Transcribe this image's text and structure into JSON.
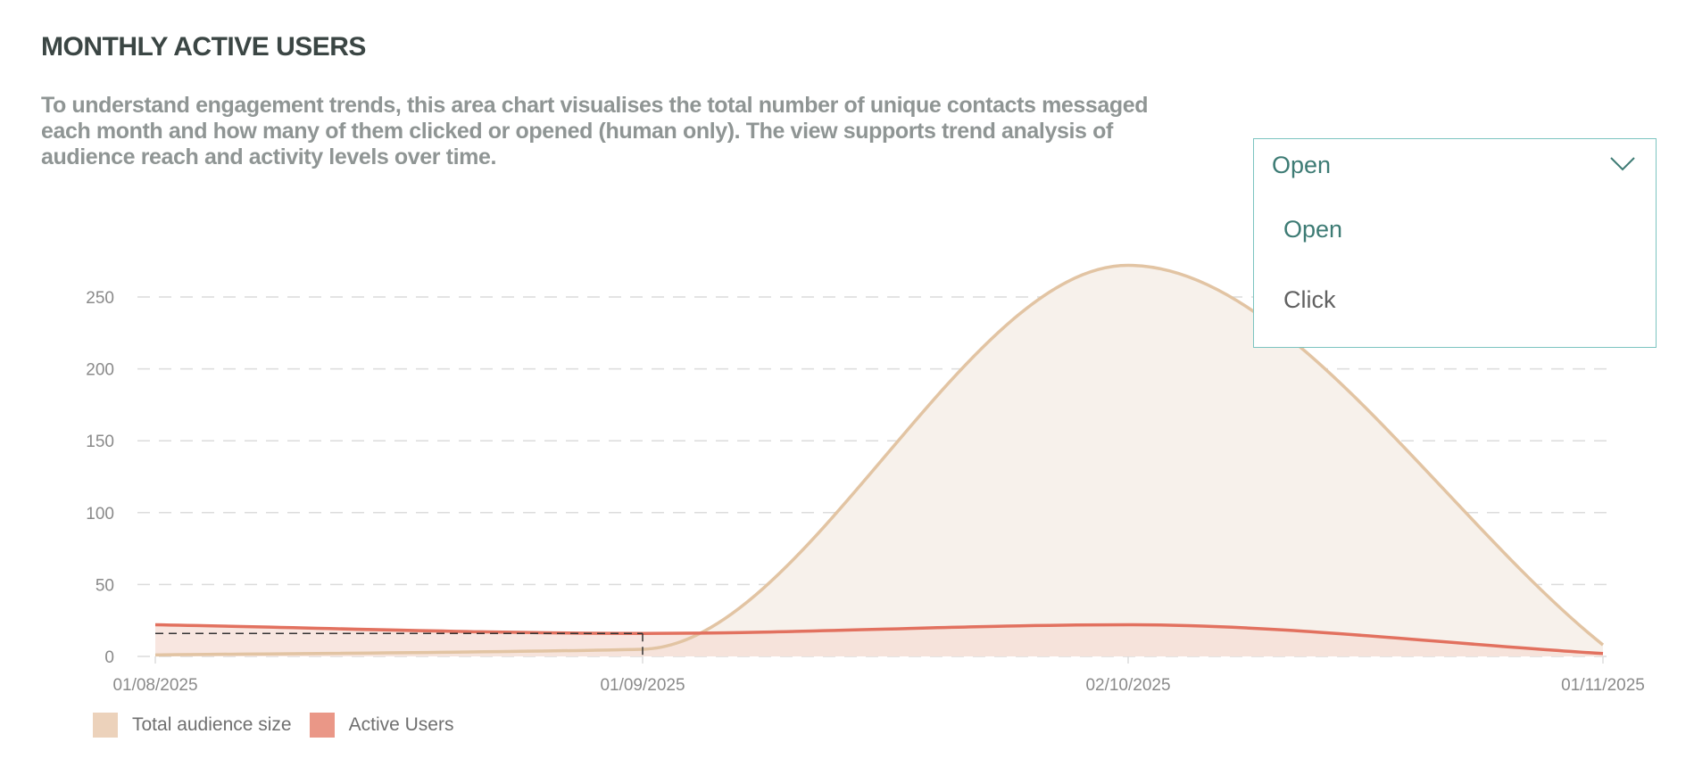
{
  "header": {
    "title": "MONTHLY ACTIVE USERS",
    "description": "To understand engagement trends, this area chart visualises the total number of unique contacts messaged each month and how many of them clicked or opened (human only). The view supports trend analysis of audience reach and activity levels over time."
  },
  "dropdown": {
    "selected": "Open",
    "options": [
      "Open",
      "Click"
    ],
    "icon": "chevron-down-icon"
  },
  "colors": {
    "total_line": "#e2c4a3",
    "total_fill": "#f7f1eb",
    "active_line": "#e2715f",
    "active_fill": "#f5ddd6",
    "legend_total": "#ecd2bb",
    "legend_active": "#ea9787",
    "accent": "#3d7b74",
    "grid": "#dcdcdc"
  },
  "legend": {
    "placement": "bottom-left",
    "items": [
      {
        "label": "Total audience size",
        "color": "#ecd2bb"
      },
      {
        "label": "Active Users",
        "color": "#ea9787"
      }
    ]
  },
  "chart_data": {
    "type": "area",
    "title": "MONTHLY ACTIVE USERS",
    "xlabel": "",
    "ylabel": "",
    "x": [
      "01/08/2025",
      "01/09/2025",
      "02/10/2025",
      "01/11/2025"
    ],
    "ylim": [
      0,
      250
    ],
    "yticks": [
      0,
      50,
      100,
      150,
      200,
      250
    ],
    "grid": true,
    "series": [
      {
        "name": "Total audience size",
        "values": [
          1,
          5,
          272,
          8
        ]
      },
      {
        "name": "Active Users",
        "values": [
          22,
          16,
          22,
          2
        ]
      }
    ],
    "annotation": {
      "type": "crosshair",
      "x": "01/09/2025",
      "y": 16
    }
  }
}
